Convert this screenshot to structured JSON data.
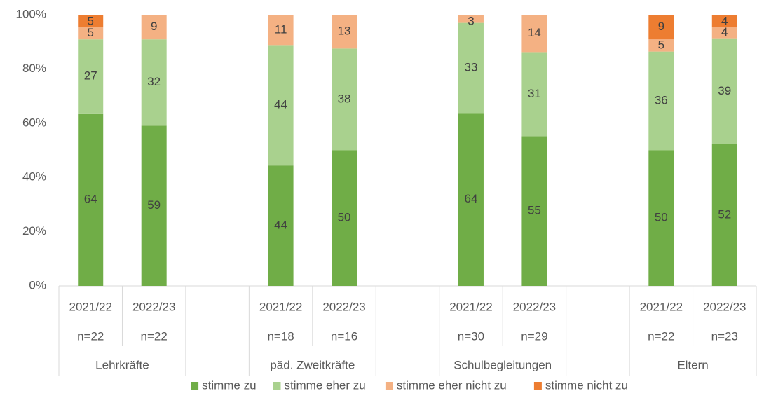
{
  "chart_data": {
    "type": "stacked_bar",
    "groups": [
      {
        "name": "Lehrkräfte",
        "categories": [
          "2021/22",
          "2022/23"
        ],
        "n": [
          "n=22",
          "n=22"
        ]
      },
      {
        "name": "päd. Zweitkräfte",
        "categories": [
          "2021/22",
          "2022/23"
        ],
        "n": [
          "n=18",
          "n=16"
        ]
      },
      {
        "name": "Schulbegleitungen",
        "categories": [
          "2021/22",
          "2022/23"
        ],
        "n": [
          "n=30",
          "n=29"
        ]
      },
      {
        "name": "Eltern",
        "categories": [
          "2021/22",
          "2022/23"
        ],
        "n": [
          "n=22",
          "n=23"
        ]
      }
    ],
    "series": [
      {
        "name": "stimme zu",
        "color": "#70ad47",
        "values": [
          63.6,
          59.1,
          44.4,
          50.0,
          63.7,
          55.2,
          50.0,
          52.2
        ],
        "value_labels": [
          "64",
          "59",
          "44",
          "50",
          "64",
          "55",
          "50",
          "52"
        ]
      },
      {
        "name": "stimme eher zu",
        "color": "#a9d18e",
        "values": [
          27.3,
          31.8,
          44.4,
          37.5,
          33.3,
          31.0,
          36.4,
          39.1
        ],
        "value_labels": [
          "27",
          "32",
          "44",
          "38",
          "33",
          "31",
          "36",
          "39"
        ]
      },
      {
        "name": "stimme eher nicht zu",
        "color": "#f4b183",
        "values": [
          4.5,
          9.1,
          11.1,
          12.5,
          3.0,
          13.8,
          4.5,
          4.3
        ],
        "value_labels": [
          "5",
          "9",
          "11",
          "13",
          "3",
          "14",
          "5",
          "4"
        ]
      },
      {
        "name": "stimme nicht zu",
        "color": "#ed7d31",
        "values": [
          4.5,
          null,
          null,
          null,
          null,
          null,
          9.1,
          4.3
        ],
        "value_labels": [
          "5",
          null,
          null,
          null,
          null,
          null,
          "9",
          "4"
        ]
      }
    ],
    "ylim": [
      0,
      100
    ],
    "yticks": [
      {
        "value": 0,
        "label": "0%"
      },
      {
        "value": 20,
        "label": "20%"
      },
      {
        "value": 40,
        "label": "40%"
      },
      {
        "value": 60,
        "label": "60%"
      },
      {
        "value": 80,
        "label": "80%"
      },
      {
        "value": 100,
        "label": "100%"
      }
    ],
    "legend": "bottom",
    "grid": false
  }
}
